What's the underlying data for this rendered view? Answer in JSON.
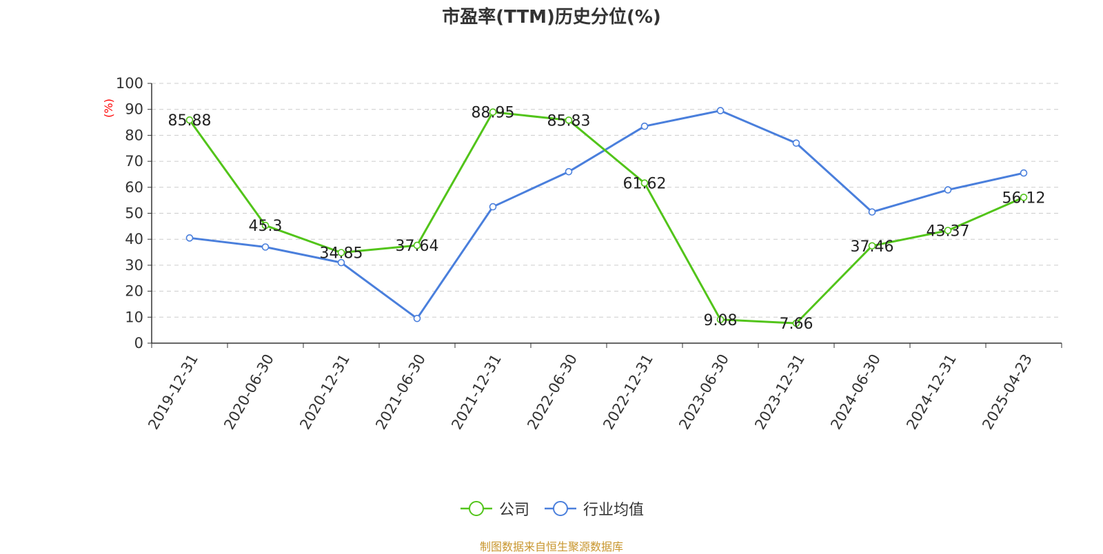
{
  "chart_data": {
    "type": "line",
    "title": "市盈率(TTM)历史分位(%)",
    "ylabel": "(%)",
    "xlabel": "",
    "ylim": [
      0,
      100
    ],
    "yticks": [
      "0",
      "10",
      "20",
      "30",
      "40",
      "50",
      "60",
      "70",
      "80",
      "90",
      "100"
    ],
    "categories": [
      "2019-12-31",
      "2020-06-30",
      "2020-12-31",
      "2021-06-30",
      "2021-12-31",
      "2022-06-30",
      "2022-12-31",
      "2023-06-30",
      "2023-12-31",
      "2024-06-30",
      "2024-12-31",
      "2025-04-23"
    ],
    "series": [
      {
        "name": "公司",
        "color": "#52c41a",
        "values": [
          85.88,
          45.3,
          34.85,
          37.64,
          88.95,
          85.83,
          61.62,
          9.08,
          7.66,
          37.46,
          43.37,
          56.12
        ],
        "labels": [
          "85.88",
          "45.3",
          "34.85",
          "37.64",
          "88.95",
          "85.83",
          "61.62",
          "9.08",
          "7.66",
          "37.46",
          "43.37",
          "56.12"
        ]
      },
      {
        "name": "行业均值",
        "color": "#4a7fdc",
        "values": [
          40.5,
          37.0,
          31.0,
          9.5,
          52.5,
          66.0,
          83.5,
          89.5,
          77.0,
          50.5,
          59.0,
          65.5
        ]
      }
    ],
    "grid": true,
    "legend_position": "bottom-center"
  },
  "footer": "制图数据来自恒生聚源数据库"
}
